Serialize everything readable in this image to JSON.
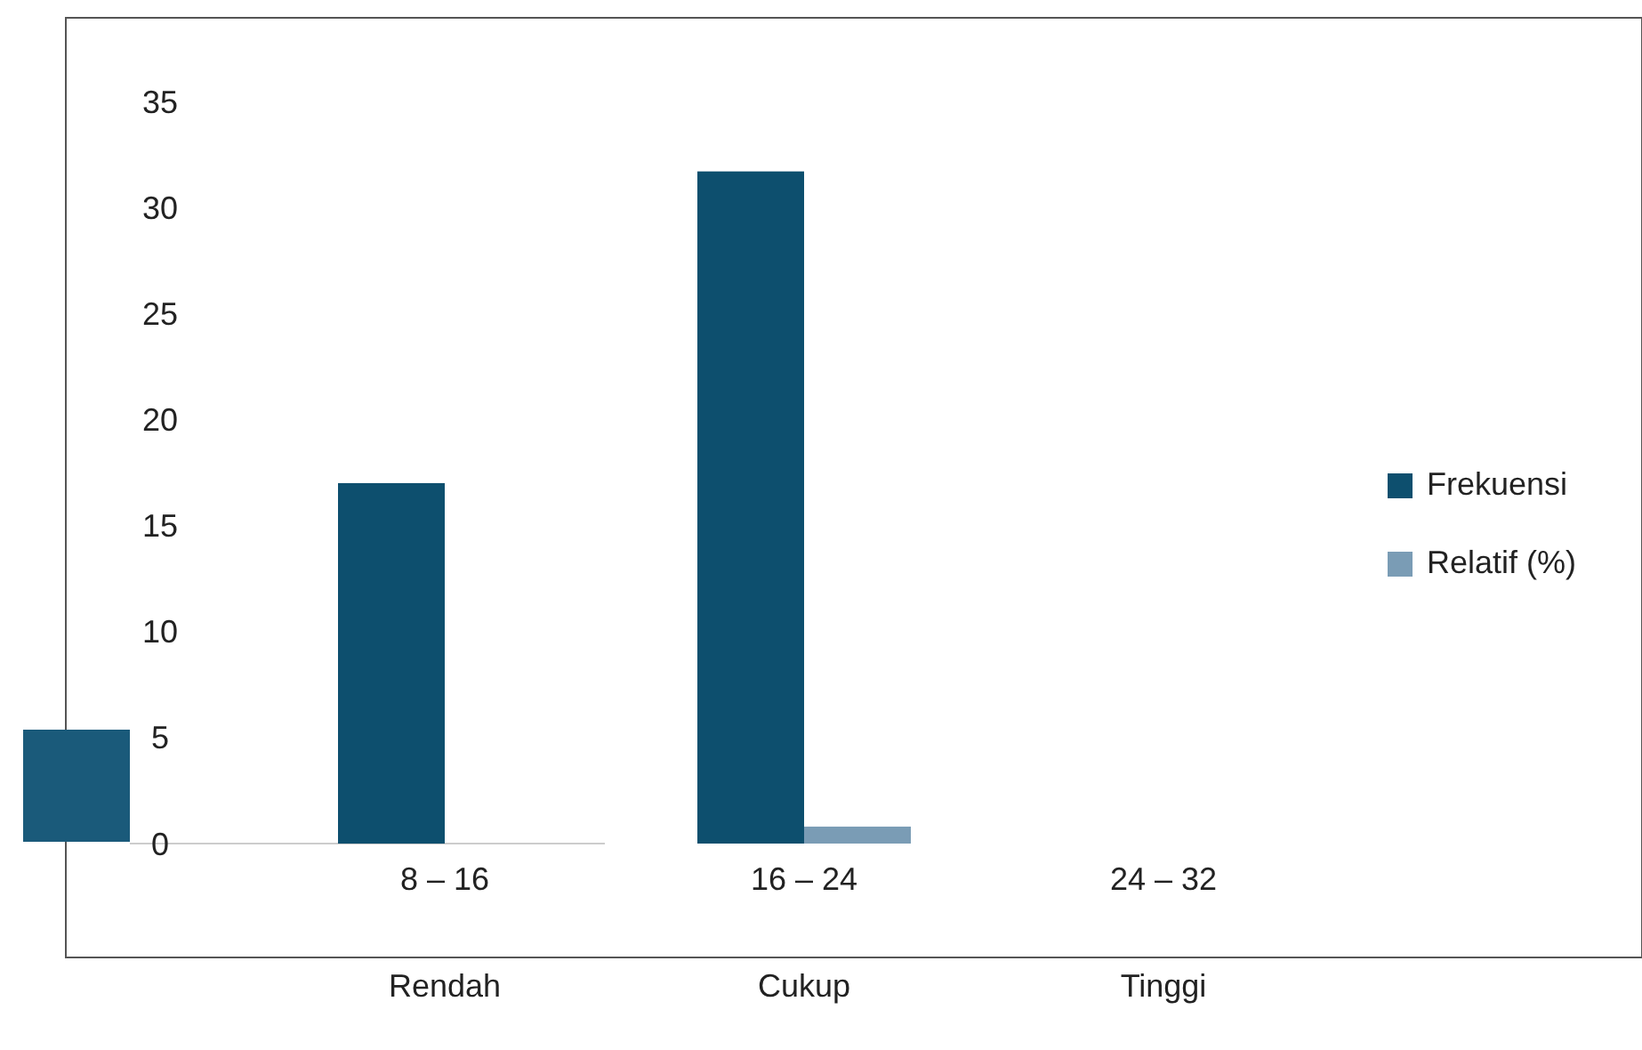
{
  "chart_data": {
    "type": "bar",
    "categories": [
      "8 – 16",
      "16 – 24",
      "24 – 32"
    ],
    "series": [
      {
        "name": "Frekuensi",
        "color": "#0d4f6e",
        "values": [
          17,
          31.7,
          0
        ]
      },
      {
        "name": "Relatif (%)",
        "color": "#7a9cb5",
        "values": [
          0,
          0.8,
          0
        ]
      }
    ],
    "ylim": [
      0,
      35
    ],
    "yticks": [
      0,
      5,
      10,
      15,
      20,
      25,
      30,
      35
    ],
    "annotations": [
      "Rendah",
      "Cukup",
      "Tinggi"
    ],
    "legend": "right",
    "grid": false
  }
}
